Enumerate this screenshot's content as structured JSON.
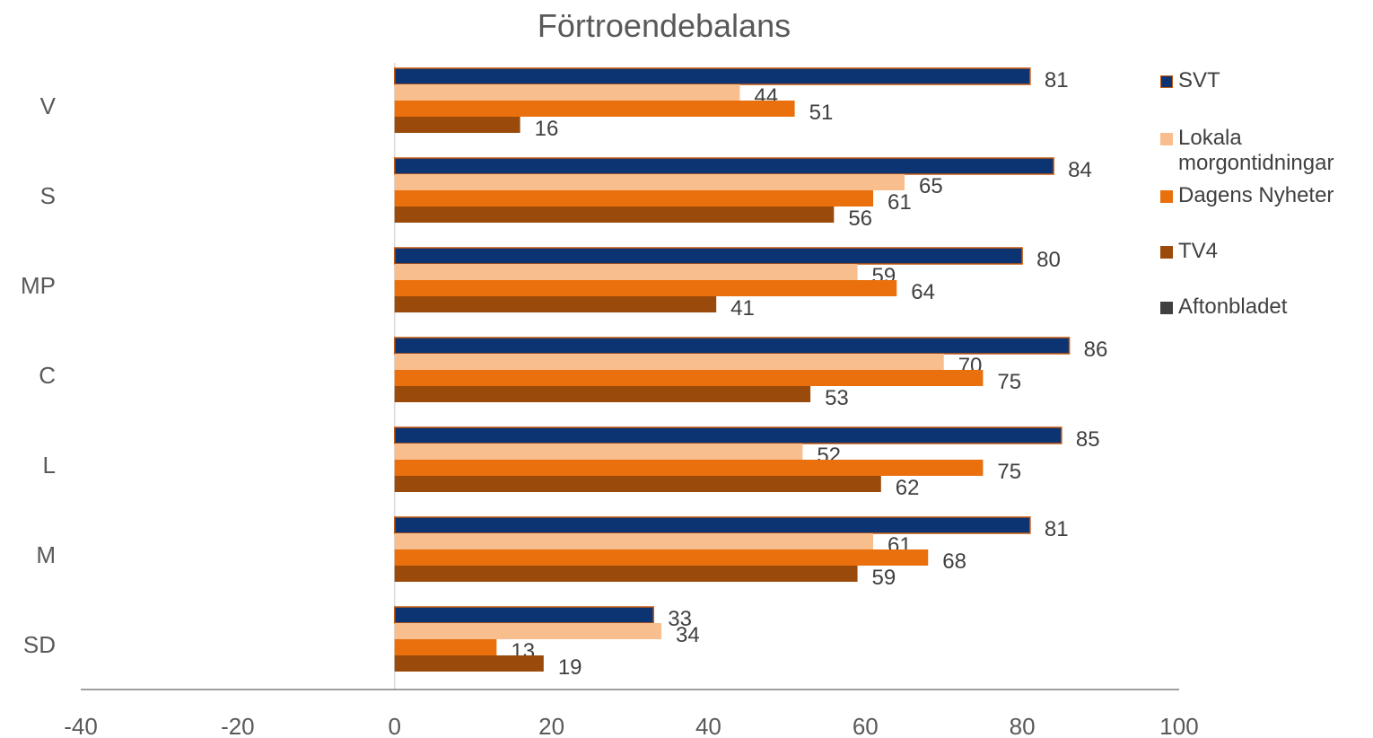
{
  "chart_data": {
    "type": "bar",
    "orientation": "horizontal",
    "title": "Förtroendebalans",
    "categories": [
      "V",
      "S",
      "MP",
      "C",
      "L",
      "M",
      "SD"
    ],
    "series": [
      {
        "name": "SVT",
        "color": "#0D3472",
        "values": [
          81,
          84,
          80,
          86,
          85,
          81,
          33
        ]
      },
      {
        "name": "Lokala morgontidningar",
        "color": "#F9BE8E",
        "values": [
          44,
          65,
          59,
          70,
          52,
          61,
          34
        ]
      },
      {
        "name": "Dagens Nyheter",
        "color": "#E9700D",
        "values": [
          51,
          61,
          64,
          75,
          75,
          68,
          13
        ]
      },
      {
        "name": "TV4",
        "color": "#9A4A0A",
        "values": [
          16,
          56,
          41,
          53,
          62,
          59,
          19
        ]
      },
      {
        "name": "Aftonbladet",
        "color": "#404040",
        "values": [
          null,
          null,
          null,
          null,
          null,
          null,
          null
        ]
      }
    ],
    "xlim": [
      -40,
      100
    ],
    "xticks": [
      "-40",
      "-20",
      "0",
      "20",
      "40",
      "60",
      "80",
      "100"
    ],
    "xlabel": "",
    "ylabel": "",
    "grid": false,
    "legend_position": "right",
    "data_labels": true
  }
}
